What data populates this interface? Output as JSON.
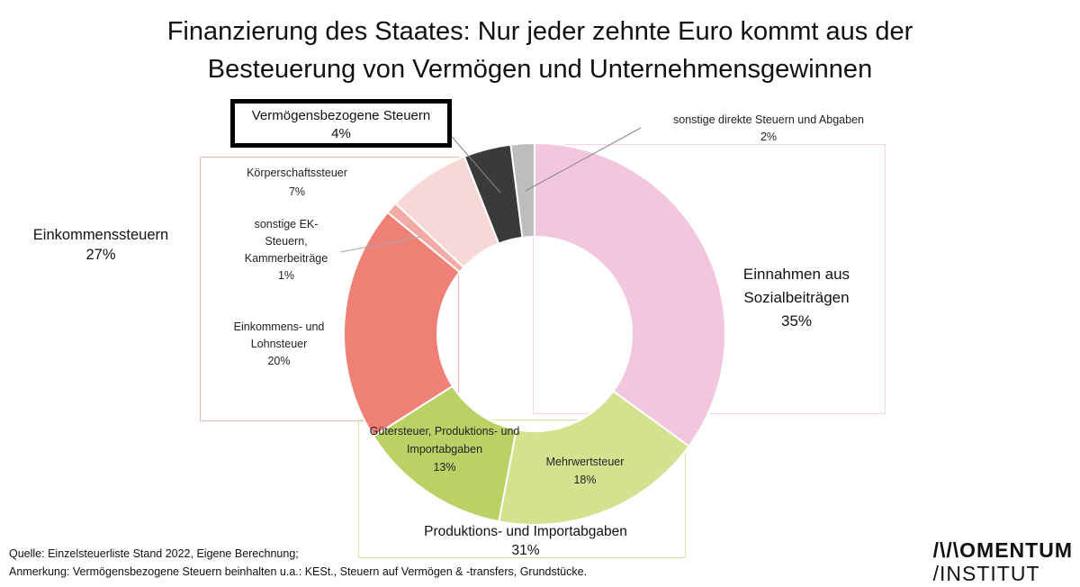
{
  "title": {
    "line1": "Finanzierung des Staates: Nur jeder zehnte Euro kommt aus der",
    "line2": "Besteuerung von Vermögen und Unternehmensgewinnen"
  },
  "chart_data": {
    "type": "pie",
    "donut": true,
    "title": "Finanzierung des Staates: Nur jeder zehnte Euro kommt aus der Besteuerung von Vermögen und Unternehmensgewinnen",
    "slices": [
      {
        "label": "Einnahmen aus Sozialbeiträgen",
        "value": 35,
        "value_label": "35%",
        "color": "#f2c6dd"
      },
      {
        "label": "Mehrwertsteuer",
        "value": 18,
        "value_label": "18%",
        "color": "#d2e28f"
      },
      {
        "label": "Gütersteuer, Produktions- und Importabgaben",
        "value": 13,
        "value_label": "13%",
        "color": "#bad165"
      },
      {
        "label": "Einkommens- und Lohnsteuer",
        "value": 20,
        "value_label": "20%",
        "color": "#ee8075"
      },
      {
        "label": "sonstige EK-Steuern, Kammerbeiträge",
        "value": 1,
        "value_label": "1%",
        "color": "#f3aca5"
      },
      {
        "label": "Körperschaftssteuer",
        "value": 7,
        "value_label": "7%",
        "color": "#f8d7d7"
      },
      {
        "label": "Vermögensbezogene Steuern",
        "value": 4,
        "value_label": "4%",
        "color": "#3a3a3a"
      },
      {
        "label": "sonstige direkte Steuern und Abgaben",
        "value": 2,
        "value_label": "2%",
        "color": "#bdbdbd"
      }
    ],
    "groups": [
      {
        "label": "Einkommenssteuern",
        "value_label": "27%",
        "color": "#f3b6b0"
      },
      {
        "label": "Produktions- und Importabgaben",
        "value_label": "31%",
        "color": "#d7e6a5"
      }
    ]
  },
  "labels": {
    "sozial": {
      "name_1": "Einnahmen aus",
      "name_2": "Sozialbeiträgen",
      "pct": "35%"
    },
    "mwst": {
      "name": "Mehrwertsteuer",
      "pct": "18%"
    },
    "gueter": {
      "name_1": "Gütersteuer, Produktions- und",
      "name_2": "Importabgaben",
      "pct": "13%"
    },
    "ek": {
      "name_1": "Einkommens- und",
      "name_2": "Lohnsteuer",
      "pct": "20%"
    },
    "sonstige_ek": {
      "name_1": "sonstige EK-",
      "name_2": "Steuern,",
      "name_3": "Kammerbeiträge",
      "pct": "1%"
    },
    "koerper": {
      "name": "Körperschaftssteuer",
      "pct": "7%"
    },
    "vermoegen": {
      "name": "Vermögensbezogene Steuern",
      "pct": "4%"
    },
    "sonstige_direkt": {
      "name": "sonstige direkte Steuern und Abgaben",
      "pct": "2%"
    },
    "group_ek": {
      "name": "Einkommenssteuern",
      "pct": "27%"
    },
    "group_prod": {
      "name": "Produktions- und Importabgaben",
      "pct": "31%"
    }
  },
  "footer": {
    "source": "Quelle: Einzelsteuerliste Stand 2022, Eigene Berechnung;",
    "note": "Anmerkung: Vermögensbezogene Steuern beinhalten u.a.: KESt., Steuern auf Vermögen & -transfers, Grundstücke."
  },
  "logo": {
    "line1": "/\\/\\OMENTUM",
    "line2": "/INSTITUT"
  }
}
